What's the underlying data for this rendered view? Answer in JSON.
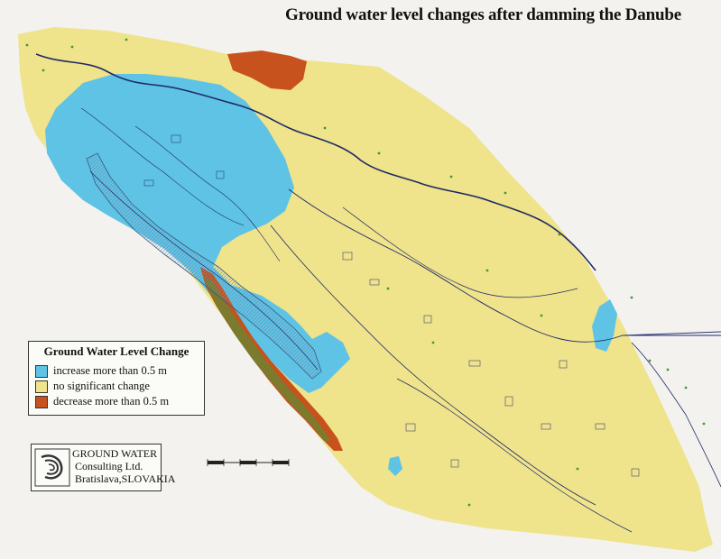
{
  "title": "Ground water level changes after damming the Danube",
  "legend": {
    "title": "Ground Water Level Change",
    "items": [
      {
        "label": "increase more than 0.5 m",
        "color": "#5ec3e4"
      },
      {
        "label": "no significant change",
        "color": "#efe38b"
      },
      {
        "label": "decrease more than 0.5 m",
        "color": "#c8521e"
      }
    ]
  },
  "logo": {
    "line1": "GROUND WATER",
    "line2": "Consulting Ltd.",
    "line3": "Bratislava,SLOVAKIA"
  },
  "colors": {
    "background": "#f3f2ee",
    "river_network": "#1e2a66",
    "vegetation_dots": "#3d9a3a"
  }
}
